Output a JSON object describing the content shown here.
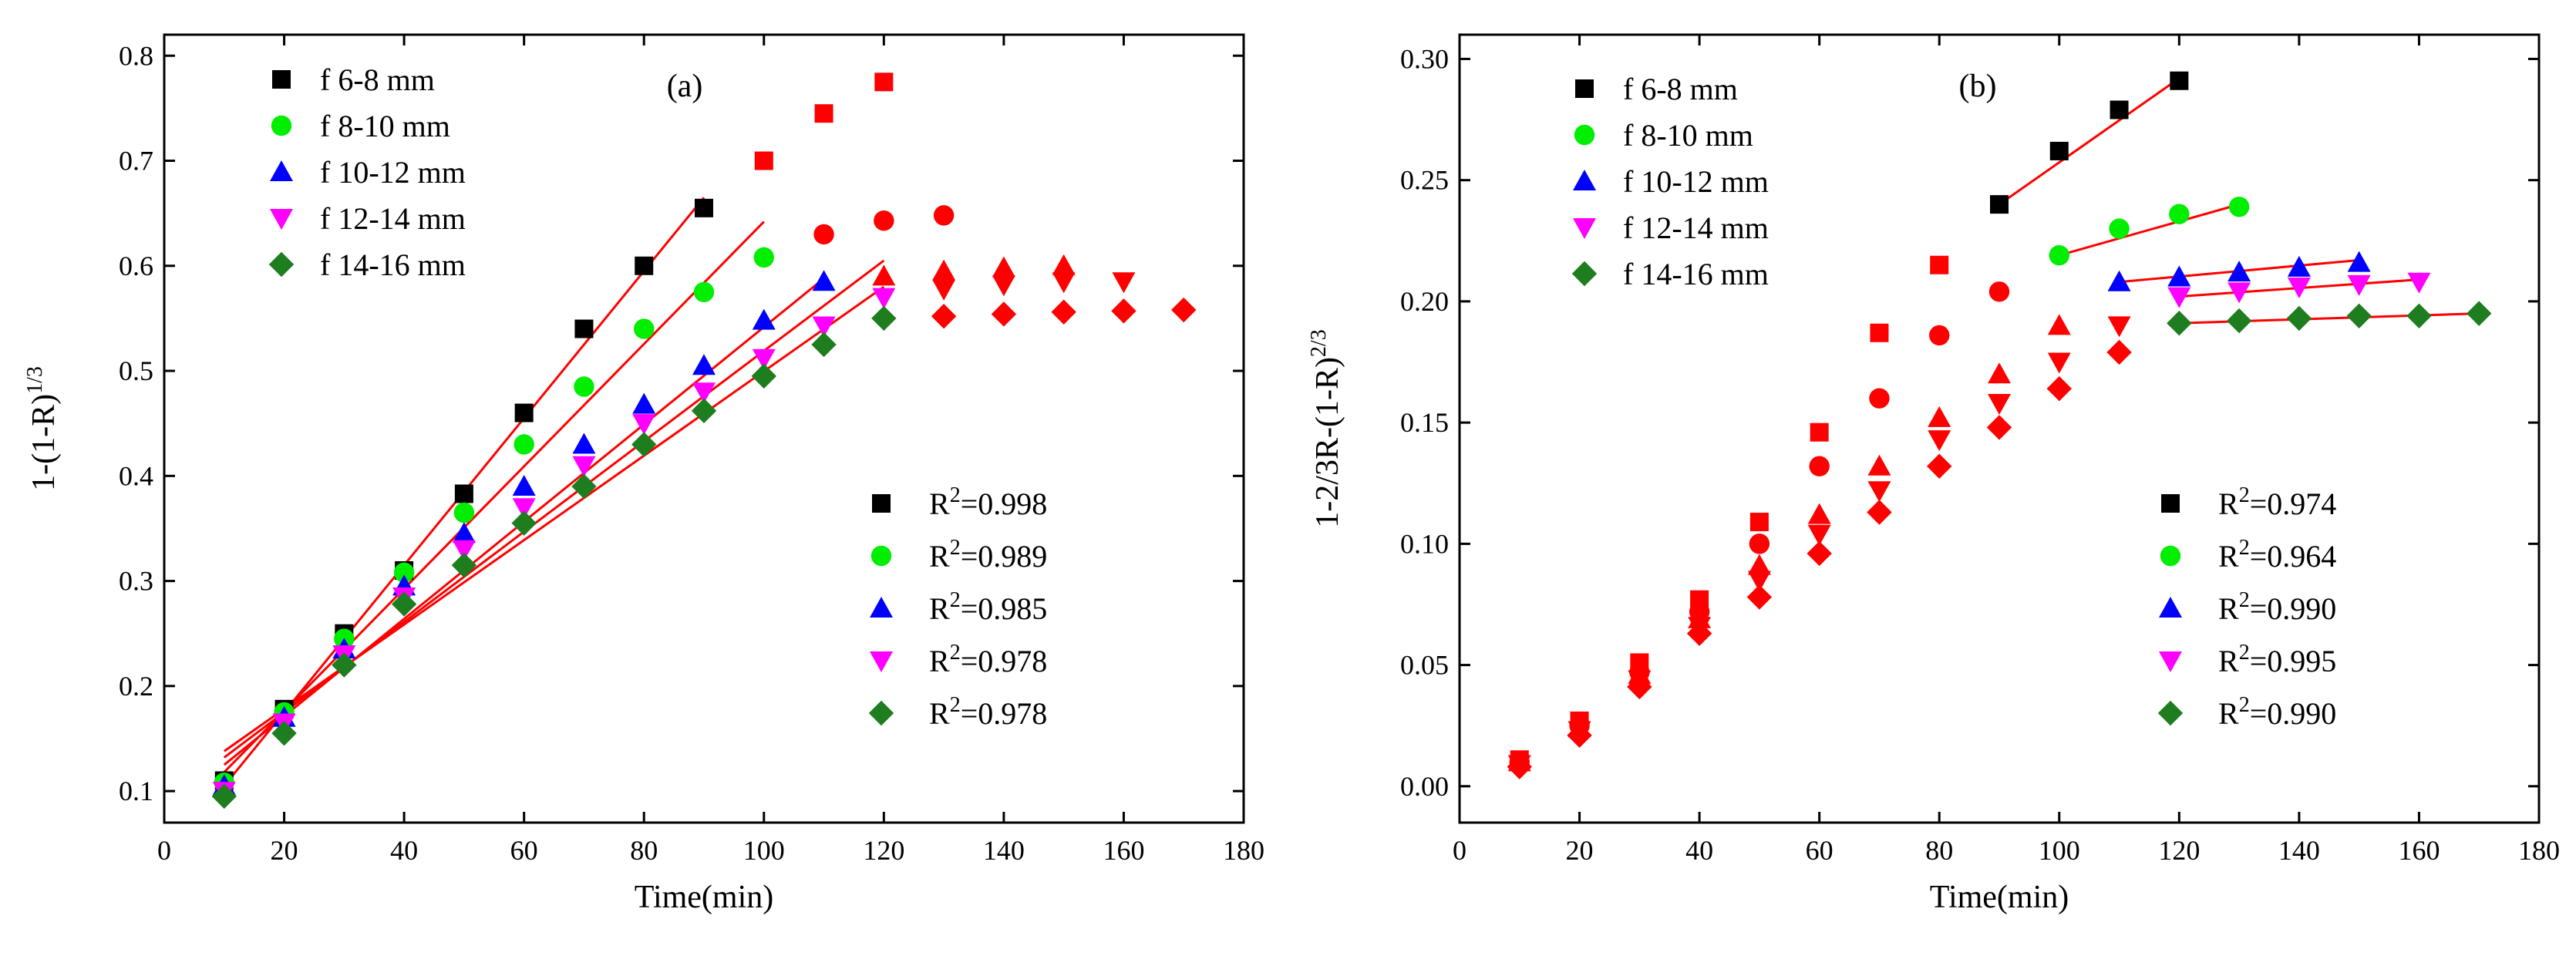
{
  "colors": {
    "black": "#000000",
    "green": "#00ee00",
    "blue": "#0000ff",
    "magenta": "#ff00ff",
    "darkgreen": "#1e7d1e",
    "red": "#ff0000"
  },
  "chart_data": [
    {
      "type": "scatter",
      "panel": "(a)",
      "xlabel": "Time(min)",
      "ylabel": "1-(1-R)^1/3",
      "ylabel_main": "1-(1-R)",
      "ylabel_sup": "1/3",
      "xlim": [
        0,
        180
      ],
      "ylim": [
        0.07,
        0.82
      ],
      "xticks": [
        0,
        20,
        40,
        60,
        80,
        100,
        120,
        140,
        160,
        180
      ],
      "yticks": [
        0.1,
        0.2,
        0.3,
        0.4,
        0.5,
        0.6,
        0.7,
        0.8
      ],
      "ytick_labels": [
        "0.1",
        "0.2",
        "0.3",
        "0.4",
        "0.5",
        "0.6",
        "0.7",
        "0.8"
      ],
      "legend": [
        {
          "label": "f    6-8 mm",
          "marker": "square",
          "color": "#000000"
        },
        {
          "label": "f   8-10 mm",
          "marker": "circle",
          "color": "#00ee00"
        },
        {
          "label": "f 10-12 mm",
          "marker": "triangle-up",
          "color": "#0000ff"
        },
        {
          "label": "f 12-14 mm",
          "marker": "triangle-down",
          "color": "#ff00ff"
        },
        {
          "label": "f 14-16 mm",
          "marker": "diamond",
          "color": "#1e7d1e"
        }
      ],
      "r2": [
        {
          "prefix": "R",
          "sup": "2",
          "value": "=0.998",
          "marker": "square",
          "color": "#000000"
        },
        {
          "prefix": "R",
          "sup": "2",
          "value": "=0.989",
          "marker": "circle",
          "color": "#00ee00"
        },
        {
          "prefix": "R",
          "sup": "2",
          "value": "=0.985",
          "marker": "triangle-up",
          "color": "#0000ff"
        },
        {
          "prefix": "R",
          "sup": "2",
          "value": "=0.978",
          "marker": "triangle-down",
          "color": "#ff00ff"
        },
        {
          "prefix": "R",
          "sup": "2",
          "value": "=0.978",
          "marker": "diamond",
          "color": "#1e7d1e"
        }
      ],
      "series": [
        {
          "name": "6-8 mm",
          "marker": "square",
          "color": "#000000",
          "fit_until": 90,
          "x": [
            10,
            20,
            30,
            40,
            50,
            60,
            70,
            80,
            90,
            100,
            110,
            120
          ],
          "y": [
            0.11,
            0.178,
            0.25,
            0.31,
            0.383,
            0.46,
            0.54,
            0.6,
            0.655,
            0.7,
            0.745,
            0.775
          ]
        },
        {
          "name": "8-10 mm",
          "marker": "circle",
          "color": "#00ee00",
          "fit_until": 100,
          "x": [
            10,
            20,
            30,
            40,
            50,
            60,
            70,
            80,
            90,
            100,
            110,
            120,
            130
          ],
          "y": [
            0.108,
            0.175,
            0.245,
            0.308,
            0.365,
            0.43,
            0.485,
            0.54,
            0.575,
            0.608,
            0.63,
            0.643,
            0.648
          ]
        },
        {
          "name": "10-12 mm",
          "marker": "triangle-up",
          "color": "#0000ff",
          "fit_until": 110,
          "x": [
            10,
            20,
            30,
            40,
            50,
            60,
            70,
            80,
            90,
            100,
            110,
            120,
            130,
            140,
            150
          ],
          "y": [
            0.105,
            0.17,
            0.235,
            0.295,
            0.345,
            0.39,
            0.43,
            0.468,
            0.505,
            0.548,
            0.585,
            0.59,
            0.595,
            0.598,
            0.6
          ]
        },
        {
          "name": "12-14 mm",
          "marker": "triangle-down",
          "color": "#ff00ff",
          "fit_until": 120,
          "x": [
            10,
            20,
            30,
            40,
            50,
            60,
            70,
            80,
            90,
            100,
            110,
            120,
            130,
            140,
            150,
            160
          ],
          "y": [
            0.1,
            0.165,
            0.23,
            0.285,
            0.33,
            0.37,
            0.41,
            0.45,
            0.48,
            0.512,
            0.543,
            0.57,
            0.578,
            0.582,
            0.585,
            0.585
          ]
        },
        {
          "name": "14-16 mm",
          "marker": "diamond",
          "color": "#1e7d1e",
          "fit_until": 120,
          "x": [
            10,
            20,
            30,
            40,
            50,
            60,
            70,
            80,
            90,
            100,
            110,
            120,
            130,
            140,
            150,
            160,
            170
          ],
          "y": [
            0.095,
            0.155,
            0.22,
            0.278,
            0.315,
            0.355,
            0.39,
            0.43,
            0.462,
            0.495,
            0.525,
            0.55,
            0.552,
            0.554,
            0.556,
            0.557,
            0.558
          ]
        }
      ],
      "fit_lines": [
        {
          "series": "6-8 mm",
          "x": [
            10,
            90
          ],
          "y": [
            0.105,
            0.665
          ]
        },
        {
          "series": "8-10 mm",
          "x": [
            10,
            100
          ],
          "y": [
            0.118,
            0.642
          ]
        },
        {
          "series": "10-12 mm",
          "x": [
            10,
            110
          ],
          "y": [
            0.125,
            0.588
          ]
        },
        {
          "series": "12-14 mm",
          "x": [
            10,
            120
          ],
          "y": [
            0.132,
            0.605
          ]
        },
        {
          "series": "14-16 mm",
          "x": [
            10,
            120
          ],
          "y": [
            0.138,
            0.58
          ]
        }
      ]
    },
    {
      "type": "scatter",
      "panel": "(b)",
      "xlabel": "Time(min)",
      "ylabel": "1-2/3R-(1-R)^2/3",
      "ylabel_main": "1-2/3R-(1-R)",
      "ylabel_sup": "2/3",
      "xlim": [
        0,
        180
      ],
      "ylim": [
        -0.015,
        0.31
      ],
      "xticks": [
        0,
        20,
        40,
        60,
        80,
        100,
        120,
        140,
        160,
        180
      ],
      "yticks": [
        0.0,
        0.05,
        0.1,
        0.15,
        0.2,
        0.25,
        0.3
      ],
      "ytick_labels": [
        "0.00",
        "0.05",
        "0.10",
        "0.15",
        "0.20",
        "0.25",
        "0.30"
      ],
      "legend": [
        {
          "label": "f    6-8 mm",
          "marker": "square",
          "color": "#000000"
        },
        {
          "label": "f   8-10 mm",
          "marker": "circle",
          "color": "#00ee00"
        },
        {
          "label": "f 10-12 mm",
          "marker": "triangle-up",
          "color": "#0000ff"
        },
        {
          "label": "f 12-14 mm",
          "marker": "triangle-down",
          "color": "#ff00ff"
        },
        {
          "label": "f 14-16 mm",
          "marker": "diamond",
          "color": "#1e7d1e"
        }
      ],
      "r2": [
        {
          "prefix": "R",
          "sup": "2",
          "value": "=0.974",
          "marker": "square",
          "color": "#000000"
        },
        {
          "prefix": "R",
          "sup": "2",
          "value": "=0.964",
          "marker": "circle",
          "color": "#00ee00"
        },
        {
          "prefix": "R",
          "sup": "2",
          "value": "=0.990",
          "marker": "triangle-up",
          "color": "#0000ff"
        },
        {
          "prefix": "R",
          "sup": "2",
          "value": "=0.995",
          "marker": "triangle-down",
          "color": "#ff00ff"
        },
        {
          "prefix": "R",
          "sup": "2",
          "value": "=0.990",
          "marker": "diamond",
          "color": "#1e7d1e"
        }
      ],
      "series": [
        {
          "name": "6-8 mm",
          "marker": "square",
          "color": "#000000",
          "fit_from": 90,
          "x": [
            10,
            20,
            30,
            40,
            50,
            60,
            70,
            80,
            90,
            100,
            110,
            120
          ],
          "y": [
            0.011,
            0.027,
            0.051,
            0.077,
            0.109,
            0.146,
            0.187,
            0.215,
            0.24,
            0.262,
            0.279,
            0.291
          ]
        },
        {
          "name": "8-10 mm",
          "marker": "circle",
          "color": "#00ee00",
          "fit_from": 100,
          "x": [
            10,
            20,
            30,
            40,
            50,
            60,
            70,
            80,
            90,
            100,
            110,
            120,
            130
          ],
          "y": [
            0.01,
            0.025,
            0.047,
            0.072,
            0.1,
            0.132,
            0.16,
            0.186,
            0.204,
            0.219,
            0.23,
            0.236,
            0.239
          ]
        },
        {
          "name": "10-12 mm",
          "marker": "triangle-up",
          "color": "#0000ff",
          "fit_from": 110,
          "x": [
            10,
            20,
            30,
            40,
            50,
            60,
            70,
            80,
            90,
            100,
            110,
            120,
            130,
            140,
            150
          ],
          "y": [
            0.01,
            0.024,
            0.046,
            0.069,
            0.091,
            0.112,
            0.132,
            0.152,
            0.17,
            0.19,
            0.208,
            0.21,
            0.212,
            0.214,
            0.216
          ]
        },
        {
          "name": "12-14 mm",
          "marker": "triangle-down",
          "color": "#ff00ff",
          "fit_from": 120,
          "x": [
            10,
            20,
            30,
            40,
            50,
            60,
            70,
            80,
            90,
            100,
            110,
            120,
            130,
            140,
            150,
            160
          ],
          "y": [
            0.009,
            0.023,
            0.044,
            0.066,
            0.085,
            0.104,
            0.122,
            0.143,
            0.158,
            0.175,
            0.19,
            0.202,
            0.204,
            0.206,
            0.207,
            0.208
          ]
        },
        {
          "name": "14-16 mm",
          "marker": "diamond",
          "color": "#1e7d1e",
          "fit_from": 120,
          "x": [
            10,
            20,
            30,
            40,
            50,
            60,
            70,
            80,
            90,
            100,
            110,
            120,
            130,
            140,
            150,
            160,
            170
          ],
          "y": [
            0.008,
            0.021,
            0.041,
            0.063,
            0.078,
            0.096,
            0.113,
            0.132,
            0.148,
            0.164,
            0.179,
            0.191,
            0.192,
            0.193,
            0.194,
            0.194,
            0.195
          ]
        }
      ],
      "fit_lines": [
        {
          "series": "6-8 mm",
          "x": [
            90,
            120
          ],
          "y": [
            0.24,
            0.292
          ]
        },
        {
          "series": "8-10 mm",
          "x": [
            100,
            130
          ],
          "y": [
            0.219,
            0.24
          ]
        },
        {
          "series": "10-12 mm",
          "x": [
            110,
            150
          ],
          "y": [
            0.208,
            0.217
          ]
        },
        {
          "series": "12-14 mm",
          "x": [
            120,
            160
          ],
          "y": [
            0.202,
            0.209
          ]
        },
        {
          "series": "14-16 mm",
          "x": [
            120,
            170
          ],
          "y": [
            0.191,
            0.195
          ]
        }
      ]
    }
  ]
}
